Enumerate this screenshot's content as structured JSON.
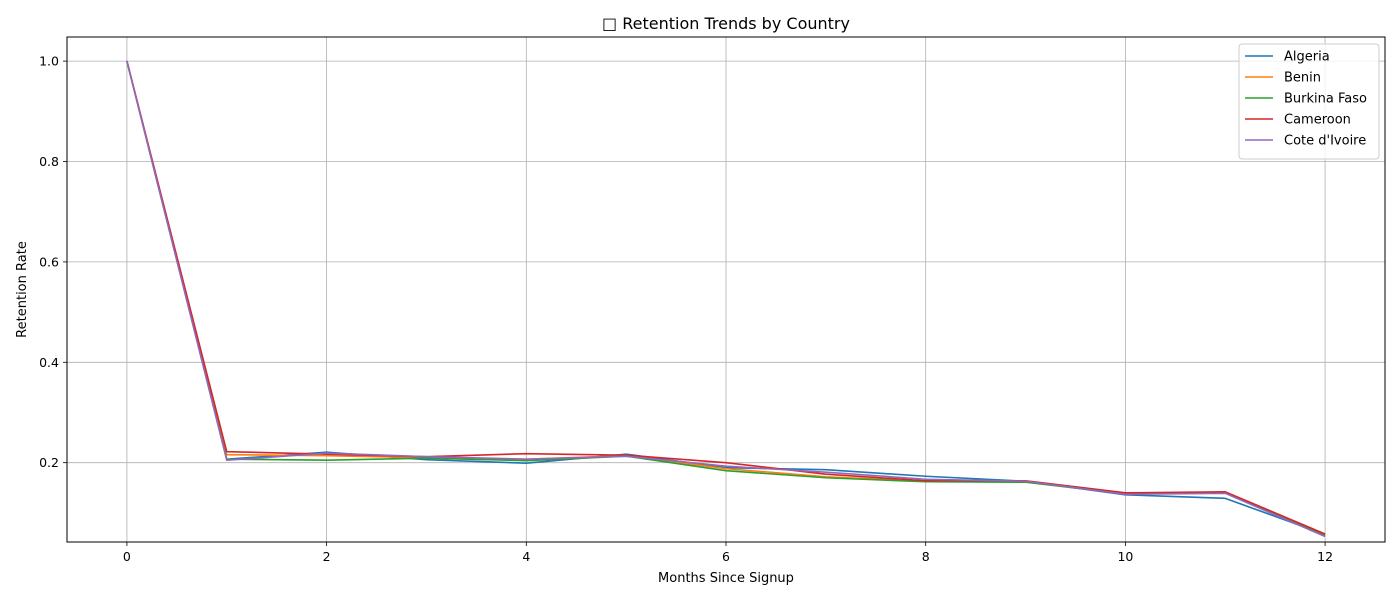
{
  "chart_data": {
    "type": "line",
    "title": "□ Retention Trends by Country",
    "xlabel": "Months Since Signup",
    "ylabel": "Retention Rate",
    "xlim": [
      -0.6,
      12.6
    ],
    "ylim": [
      0.042,
      1.048
    ],
    "x_ticks": [
      0,
      2,
      4,
      6,
      8,
      10,
      12
    ],
    "y_ticks": [
      0.2,
      0.4,
      0.6,
      0.8,
      1.0
    ],
    "x_tick_labels": [
      "0",
      "2",
      "4",
      "6",
      "8",
      "10",
      "12"
    ],
    "y_tick_labels": [
      "0.2",
      "0.4",
      "0.6",
      "0.8",
      "1.0"
    ],
    "grid": true,
    "legend_position": "top-right",
    "x": [
      0,
      1,
      2,
      3,
      4,
      5,
      6,
      7,
      8,
      9,
      10,
      11,
      12
    ],
    "series": [
      {
        "name": "Algeria",
        "color": "#1f77b4",
        "values": [
          1.0,
          0.207,
          0.221,
          0.206,
          0.199,
          0.217,
          0.19,
          0.186,
          0.173,
          0.163,
          0.136,
          0.129,
          0.057
        ]
      },
      {
        "name": "Benin",
        "color": "#ff7f0e",
        "values": [
          1.0,
          0.216,
          0.214,
          0.21,
          0.207,
          0.214,
          0.188,
          0.172,
          0.163,
          0.163,
          0.139,
          0.14,
          0.056
        ]
      },
      {
        "name": "Burkina Faso",
        "color": "#2ca02c",
        "values": [
          1.0,
          0.207,
          0.205,
          0.209,
          0.204,
          0.213,
          0.184,
          0.17,
          0.162,
          0.161,
          0.138,
          0.14,
          0.055
        ]
      },
      {
        "name": "Cameroon",
        "color": "#d62728",
        "values": [
          1.0,
          0.222,
          0.217,
          0.212,
          0.218,
          0.215,
          0.2,
          0.177,
          0.164,
          0.164,
          0.14,
          0.142,
          0.058
        ]
      },
      {
        "name": "Cote d'Ivoire",
        "color": "#9467bd",
        "values": [
          1.0,
          0.205,
          0.219,
          0.212,
          0.207,
          0.213,
          0.193,
          0.181,
          0.167,
          0.163,
          0.137,
          0.139,
          0.053
        ]
      }
    ]
  }
}
